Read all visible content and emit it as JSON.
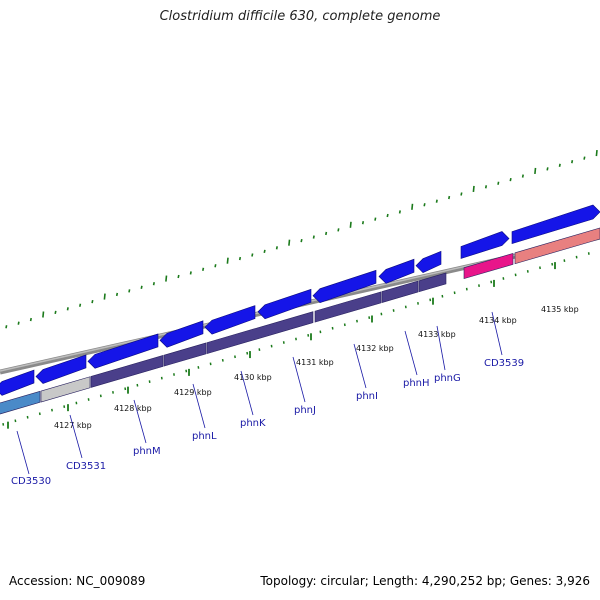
{
  "title": "Clostridium difficile 630, complete genome",
  "footer": {
    "accession": "Accession: NC_009089",
    "summary": "Topology: circular; Length: 4,290,252 bp; Genes: 3,926"
  },
  "colors": {
    "backbone": "#8a8a8a",
    "forward_gene": "#1515e8",
    "reverse_gene": "#4a3f8a",
    "tick": "#1b7a1b",
    "label": "#1a1aa6",
    "highlight_pink": "#e8158a",
    "highlight_salmon": "#e88080",
    "light_blue": "#4a8ac8",
    "light_grey": "#c8c8c8"
  },
  "kbp_labels": [
    "4127 kbp",
    "4128 kbp",
    "4129 kbp",
    "4130 kbp",
    "4131 kbp",
    "4132 kbp",
    "4133 kbp",
    "4134 kbp",
    "4135 kbp"
  ],
  "gene_labels": [
    "CD3530",
    "CD3531",
    "phnM",
    "phnL",
    "phnK",
    "phnJ",
    "phnI",
    "phnH",
    "phnG",
    "CD3539"
  ]
}
